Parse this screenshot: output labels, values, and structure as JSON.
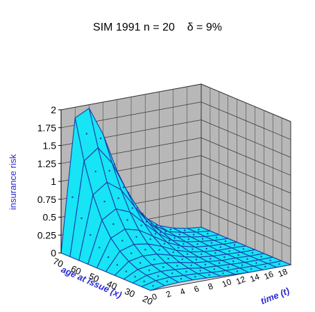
{
  "chart_data": {
    "type": "surface",
    "title": "SIM 1991 n = 20    δ = 9%",
    "zlabel": "insurance risk",
    "xlabel": "age at issue (x)",
    "ylabel": "time (t)",
    "zlim": [
      0,
      2
    ],
    "z_ticks": [
      "0",
      "0.25",
      "0.5",
      "0.75",
      "1",
      "1.25",
      "1.5",
      "1.75",
      "2"
    ],
    "x_ticks": [
      "70",
      "60",
      "50",
      "40",
      "30",
      "20"
    ],
    "y_ticks": [
      "0",
      "2",
      "4",
      "6",
      "8",
      "10",
      "12",
      "14",
      "16",
      "18"
    ],
    "age_values": [
      70,
      65,
      60,
      55,
      50,
      45,
      40,
      35,
      30,
      25,
      20
    ],
    "time_values": [
      0,
      2,
      4,
      6,
      8,
      10,
      12,
      14,
      16,
      18,
      20
    ],
    "surface_z": [
      [
        0.0,
        1.85,
        1.95,
        1.55,
        1.0,
        0.56,
        0.28,
        0.13,
        0.06,
        0.02,
        0.0
      ],
      [
        0.0,
        1.3,
        1.45,
        1.2,
        0.8,
        0.45,
        0.22,
        0.1,
        0.05,
        0.02,
        0.0
      ],
      [
        0.0,
        0.88,
        1.02,
        0.88,
        0.6,
        0.34,
        0.17,
        0.08,
        0.04,
        0.01,
        0.0
      ],
      [
        0.0,
        0.58,
        0.7,
        0.62,
        0.43,
        0.25,
        0.12,
        0.06,
        0.03,
        0.01,
        0.0
      ],
      [
        0.0,
        0.38,
        0.47,
        0.42,
        0.3,
        0.18,
        0.09,
        0.04,
        0.02,
        0.01,
        0.0
      ],
      [
        0.0,
        0.25,
        0.31,
        0.28,
        0.21,
        0.12,
        0.06,
        0.03,
        0.01,
        0.01,
        0.0
      ],
      [
        0.0,
        0.16,
        0.2,
        0.19,
        0.14,
        0.08,
        0.04,
        0.02,
        0.01,
        0.0,
        0.0
      ],
      [
        0.0,
        0.1,
        0.13,
        0.12,
        0.09,
        0.05,
        0.03,
        0.01,
        0.01,
        0.0,
        0.0
      ],
      [
        0.0,
        0.07,
        0.09,
        0.08,
        0.06,
        0.03,
        0.02,
        0.01,
        0.0,
        0.0,
        0.0
      ],
      [
        0.0,
        0.05,
        0.06,
        0.05,
        0.04,
        0.02,
        0.01,
        0.01,
        0.0,
        0.0,
        0.0
      ],
      [
        0.0,
        0.03,
        0.04,
        0.04,
        0.03,
        0.02,
        0.01,
        0.0,
        0.0,
        0.0,
        0.0
      ]
    ],
    "grid": true,
    "colors": {
      "surface": "#17e4f4",
      "surface_edge": "#1a3da8",
      "wall": "#b8b8b8",
      "floor": "#d8d8d8",
      "wall_grid": "#333333",
      "axis_label": "#2a2ad0",
      "tick_label": "#000000"
    }
  }
}
